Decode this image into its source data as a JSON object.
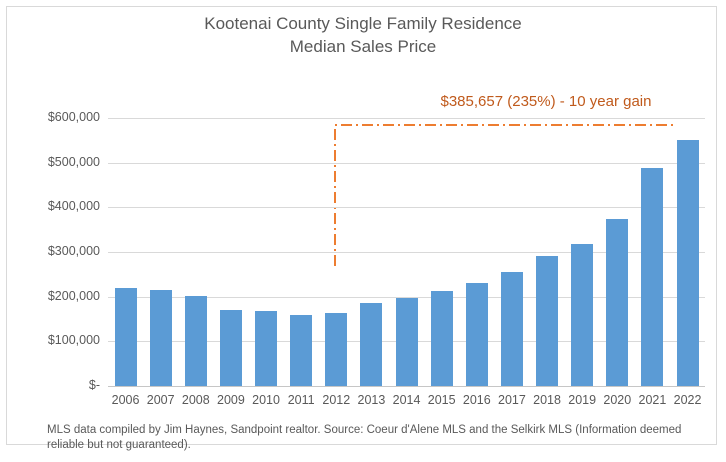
{
  "title": {
    "line1": "Kootenai County Single Family Residence",
    "line2": "Median Sales Price"
  },
  "annotation": {
    "label": "$385,657 (235%) - 10 year gain",
    "text_color": "#c05a1c",
    "line_color": "#ed7d31"
  },
  "footer": {
    "text": "MLS data compiled by Jim Haynes, Sandpoint realtor.  Source:  Coeur d'Alene MLS and the Selkirk MLS (Information deemed reliable but not guaranteed)."
  },
  "colors": {
    "bar": "#5b9bd5",
    "gridline": "#d9d9d9",
    "text": "#595959"
  },
  "chart_data": {
    "type": "bar",
    "title": "Kootenai County Single Family Residence Median Sales Price",
    "xlabel": "",
    "ylabel": "",
    "ylim": [
      0,
      600000
    ],
    "grid": true,
    "legend": false,
    "y_ticks": [
      "$600,000",
      "$500,000",
      "$400,000",
      "$300,000",
      "$200,000",
      "$100,000",
      "$-"
    ],
    "categories": [
      "2006",
      "2007",
      "2008",
      "2009",
      "2010",
      "2011",
      "2012",
      "2013",
      "2014",
      "2015",
      "2016",
      "2017",
      "2018",
      "2019",
      "2020",
      "2021",
      "2022"
    ],
    "values": [
      220000,
      214000,
      201000,
      171000,
      169000,
      158000,
      164109,
      185000,
      198000,
      213000,
      230000,
      255000,
      292000,
      318000,
      374000,
      489000,
      549766
    ],
    "annotation": "$385,657 (235%) - 10 year gain"
  }
}
